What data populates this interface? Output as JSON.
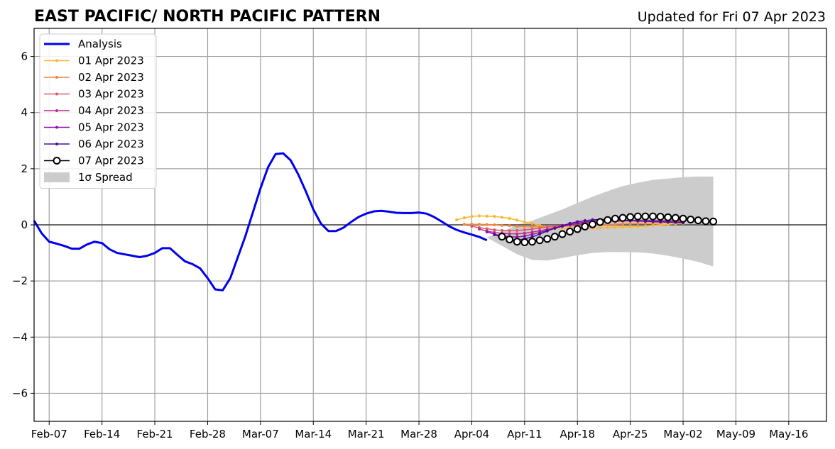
{
  "chart_data": {
    "type": "line",
    "title": "EAST PACIFIC/ NORTH PACIFIC PATTERN",
    "subtitle": "Updated for Fri 07 Apr 2023",
    "xlabel": "",
    "ylabel": "",
    "x_start": "2023-02-05",
    "xlim": [
      "2023-02-05",
      "2023-05-21"
    ],
    "ylim": [
      -7,
      7
    ],
    "yticks": [
      -6,
      -4,
      -2,
      0,
      2,
      4,
      6
    ],
    "ytick_labels": [
      "−6",
      "−4",
      "−2",
      "0",
      "2",
      "4",
      "6"
    ],
    "xticks": [
      "2023-02-07",
      "2023-02-14",
      "2023-02-21",
      "2023-02-28",
      "2023-03-07",
      "2023-03-14",
      "2023-03-21",
      "2023-03-28",
      "2023-04-04",
      "2023-04-11",
      "2023-04-18",
      "2023-04-25",
      "2023-05-02",
      "2023-05-09",
      "2023-05-16"
    ],
    "xtick_labels": [
      "Feb-07",
      "Feb-14",
      "Feb-21",
      "Feb-28",
      "Mar-07",
      "Mar-14",
      "Mar-21",
      "Mar-28",
      "Apr-04",
      "Apr-11",
      "Apr-18",
      "Apr-25",
      "May-02",
      "May-09",
      "May-16"
    ],
    "grid": true,
    "zero_line": true,
    "legend_position": "top-left",
    "legend": [
      {
        "label": "Analysis",
        "color": "#0000ee",
        "kind": "line"
      },
      {
        "label": "01 Apr 2023",
        "color": "#fbb630",
        "kind": "marker-line"
      },
      {
        "label": "02 Apr 2023",
        "color": "#f3843e",
        "kind": "marker-line"
      },
      {
        "label": "03 Apr 2023",
        "color": "#dd5a6e",
        "kind": "marker-line"
      },
      {
        "label": "04 Apr 2023",
        "color": "#b6308b",
        "kind": "marker-line"
      },
      {
        "label": "05 Apr 2023",
        "color": "#8c14a5",
        "kind": "marker-line"
      },
      {
        "label": "06 Apr 2023",
        "color": "#4e0c9b",
        "kind": "marker-line"
      },
      {
        "label": "07 Apr 2023",
        "color": "#000000",
        "kind": "circle-line"
      },
      {
        "label": "1σ Spread",
        "color": "#cccccc",
        "kind": "patch"
      }
    ],
    "analysis": {
      "name": "Analysis",
      "color": "#0000ee",
      "x": [
        "2023-02-05",
        "2023-02-06",
        "2023-02-07",
        "2023-02-08",
        "2023-02-09",
        "2023-02-10",
        "2023-02-11",
        "2023-02-12",
        "2023-02-13",
        "2023-02-14",
        "2023-02-15",
        "2023-02-16",
        "2023-02-17",
        "2023-02-18",
        "2023-02-19",
        "2023-02-20",
        "2023-02-21",
        "2023-02-22",
        "2023-02-23",
        "2023-02-24",
        "2023-02-25",
        "2023-02-26",
        "2023-02-27",
        "2023-02-28",
        "2023-03-01",
        "2023-03-02",
        "2023-03-03",
        "2023-03-04",
        "2023-03-05",
        "2023-03-06",
        "2023-03-07",
        "2023-03-08",
        "2023-03-09",
        "2023-03-10",
        "2023-03-11",
        "2023-03-12",
        "2023-03-13",
        "2023-03-14",
        "2023-03-15",
        "2023-03-16",
        "2023-03-17",
        "2023-03-18",
        "2023-03-19",
        "2023-03-20",
        "2023-03-21",
        "2023-03-22",
        "2023-03-23",
        "2023-03-24",
        "2023-03-25",
        "2023-03-26",
        "2023-03-27",
        "2023-03-28",
        "2023-03-29",
        "2023-03-30",
        "2023-03-31",
        "2023-04-01",
        "2023-04-02",
        "2023-04-03",
        "2023-04-04",
        "2023-04-05",
        "2023-04-06"
      ],
      "y": [
        0.15,
        -0.3,
        -0.6,
        -0.67,
        -0.75,
        -0.85,
        -0.85,
        -0.7,
        -0.6,
        -0.65,
        -0.87,
        -1.0,
        -1.05,
        -1.1,
        -1.15,
        -1.1,
        -1.0,
        -0.83,
        -0.83,
        -1.07,
        -1.3,
        -1.4,
        -1.55,
        -1.9,
        -2.3,
        -2.33,
        -1.9,
        -1.15,
        -0.4,
        0.45,
        1.3,
        2.05,
        2.52,
        2.55,
        2.3,
        1.8,
        1.2,
        0.55,
        0.05,
        -0.22,
        -0.22,
        -0.1,
        0.1,
        0.28,
        0.4,
        0.48,
        0.5,
        0.47,
        0.43,
        0.42,
        0.42,
        0.44,
        0.4,
        0.28,
        0.12,
        -0.05,
        -0.18,
        -0.27,
        -0.35,
        -0.43,
        -0.55
      ]
    },
    "spread": {
      "name": "1σ Spread",
      "x": [
        "2023-04-06",
        "2023-04-08",
        "2023-04-10",
        "2023-04-12",
        "2023-04-14",
        "2023-04-16",
        "2023-04-18",
        "2023-04-20",
        "2023-04-22",
        "2023-04-24",
        "2023-04-26",
        "2023-04-28",
        "2023-04-30",
        "2023-05-02",
        "2023-05-04",
        "2023-05-06"
      ],
      "upper": [
        -0.45,
        -0.25,
        0.0,
        0.15,
        0.35,
        0.55,
        0.78,
        1.0,
        1.2,
        1.38,
        1.5,
        1.6,
        1.65,
        1.7,
        1.72,
        1.72
      ],
      "lower": [
        -0.45,
        -0.75,
        -1.05,
        -1.25,
        -1.27,
        -1.18,
        -1.08,
        -1.0,
        -0.97,
        -0.97,
        -0.98,
        -1.02,
        -1.1,
        -1.2,
        -1.32,
        -1.48
      ]
    },
    "series": [
      {
        "name": "01 Apr 2023",
        "color": "#fbb630",
        "x_start": "2023-04-02",
        "values": [
          0.18,
          0.25,
          0.3,
          0.32,
          0.31,
          0.3,
          0.27,
          0.23,
          0.17,
          0.1,
          0.05,
          -0.02,
          -0.07,
          -0.1,
          -0.12,
          -0.13,
          -0.13,
          -0.12,
          -0.12,
          -0.11,
          -0.1,
          -0.09,
          -0.08,
          -0.07,
          -0.06,
          -0.04,
          -0.02,
          0.0,
          0.02,
          0.04,
          0.06
        ]
      },
      {
        "name": "02 Apr 2023",
        "color": "#f3843e",
        "x_start": "2023-04-03",
        "values": [
          0.02,
          0.02,
          0.02,
          0.01,
          0.0,
          -0.02,
          -0.03,
          -0.05,
          -0.06,
          -0.07,
          -0.07,
          -0.07,
          -0.06,
          -0.05,
          -0.04,
          -0.03,
          -0.02,
          -0.01,
          0.0,
          0.01,
          0.02,
          0.03,
          0.04,
          0.05,
          0.06,
          0.07,
          0.08,
          0.09,
          0.1,
          0.1
        ]
      },
      {
        "name": "03 Apr 2023",
        "color": "#dd5a6e",
        "x_start": "2023-04-04",
        "values": [
          -0.05,
          -0.1,
          -0.14,
          -0.18,
          -0.2,
          -0.21,
          -0.2,
          -0.18,
          -0.15,
          -0.12,
          -0.08,
          -0.05,
          -0.02,
          0.0,
          0.03,
          0.05,
          0.07,
          0.09,
          0.11,
          0.12,
          0.13,
          0.14,
          0.14,
          0.15,
          0.15,
          0.15,
          0.15,
          0.15,
          0.14
        ]
      },
      {
        "name": "04 Apr 2023",
        "color": "#b6308b",
        "x_start": "2023-04-05",
        "values": [
          -0.15,
          -0.22,
          -0.27,
          -0.3,
          -0.32,
          -0.32,
          -0.3,
          -0.26,
          -0.21,
          -0.16,
          -0.1,
          -0.05,
          0.0,
          0.04,
          0.07,
          0.1,
          0.12,
          0.14,
          0.15,
          0.16,
          0.16,
          0.16,
          0.16,
          0.15,
          0.15,
          0.14,
          0.13,
          0.12
        ]
      },
      {
        "name": "05 Apr 2023",
        "color": "#8c14a5",
        "x_start": "2023-04-06",
        "values": [
          -0.25,
          -0.33,
          -0.4,
          -0.43,
          -0.43,
          -0.4,
          -0.34,
          -0.27,
          -0.2,
          -0.12,
          -0.05,
          0.01,
          0.06,
          0.1,
          0.13,
          0.15,
          0.16,
          0.16,
          0.16,
          0.15,
          0.14,
          0.13,
          0.12,
          0.11,
          0.1,
          0.09,
          0.08
        ]
      },
      {
        "name": "06 Apr 2023",
        "color": "#4e0c9b",
        "x_start": "2023-04-07",
        "values": [
          -0.35,
          -0.45,
          -0.52,
          -0.54,
          -0.5,
          -0.43,
          -0.33,
          -0.22,
          -0.12,
          -0.03,
          0.05,
          0.11,
          0.15,
          0.18,
          0.19,
          0.19,
          0.18,
          0.17,
          0.15,
          0.14,
          0.13,
          0.12,
          0.11,
          0.1,
          0.09,
          0.08
        ]
      },
      {
        "name": "07 Apr 2023",
        "color": "#000000",
        "x_start": "2023-04-08",
        "values": [
          -0.42,
          -0.52,
          -0.6,
          -0.62,
          -0.6,
          -0.55,
          -0.5,
          -0.42,
          -0.33,
          -0.24,
          -0.15,
          -0.06,
          0.02,
          0.1,
          0.17,
          0.22,
          0.25,
          0.28,
          0.3,
          0.3,
          0.3,
          0.29,
          0.27,
          0.25,
          0.22,
          0.19,
          0.16,
          0.13,
          0.12
        ]
      }
    ]
  }
}
